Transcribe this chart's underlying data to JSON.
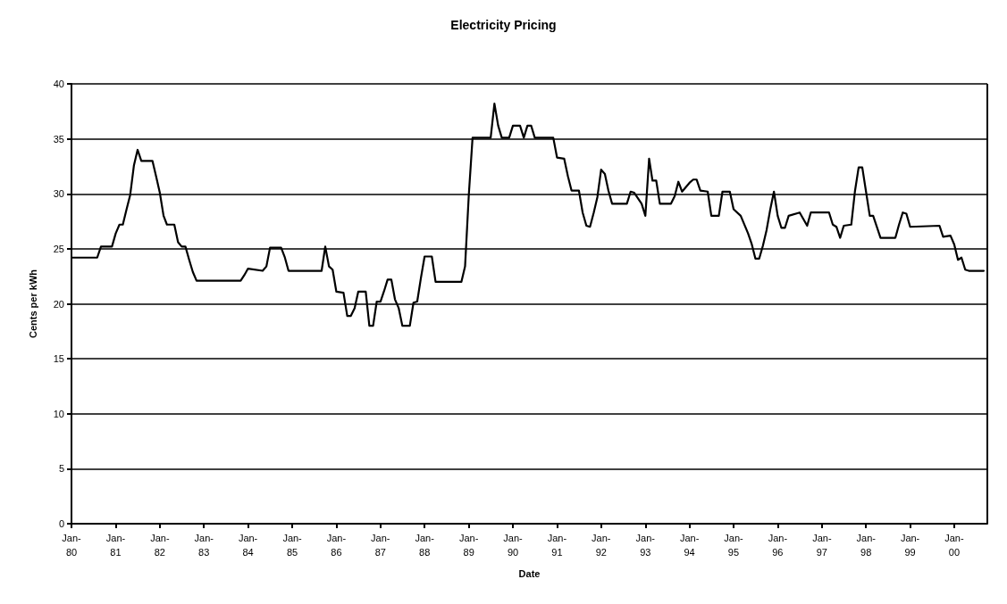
{
  "chart_data": {
    "type": "line",
    "title": "Electricity Pricing",
    "xlabel": "Date",
    "ylabel": "Cents per kWh",
    "xlim": [
      "1980-01",
      "2000-10"
    ],
    "xticks": [
      {
        "value": "1980-01",
        "label": "Jan-80"
      },
      {
        "value": "1981-01",
        "label": "Jan-81"
      },
      {
        "value": "1982-01",
        "label": "Jan-82"
      },
      {
        "value": "1983-01",
        "label": "Jan-83"
      },
      {
        "value": "1984-01",
        "label": "Jan-84"
      },
      {
        "value": "1985-01",
        "label": "Jan-85"
      },
      {
        "value": "1986-01",
        "label": "Jan-86"
      },
      {
        "value": "1987-01",
        "label": "Jan-87"
      },
      {
        "value": "1988-01",
        "label": "Jan-88"
      },
      {
        "value": "1989-01",
        "label": "Jan-89"
      },
      {
        "value": "1990-01",
        "label": "Jan-90"
      },
      {
        "value": "1991-01",
        "label": "Jan-91"
      },
      {
        "value": "1992-01",
        "label": "Jan-92"
      },
      {
        "value": "1993-01",
        "label": "Jan-93"
      },
      {
        "value": "1994-01",
        "label": "Jan-94"
      },
      {
        "value": "1995-01",
        "label": "Jan-95"
      },
      {
        "value": "1996-01",
        "label": "Jan-96"
      },
      {
        "value": "1997-01",
        "label": "Jan-97"
      },
      {
        "value": "1998-01",
        "label": "Jan-98"
      },
      {
        "value": "1999-01",
        "label": "Jan-99"
      },
      {
        "value": "2000-01",
        "label": "Jan-00"
      }
    ],
    "ylim": [
      0,
      40
    ],
    "yticks": [
      0,
      5,
      10,
      15,
      20,
      25,
      30,
      35,
      40
    ],
    "grid": "y",
    "marker": "none",
    "line_style": "solid",
    "series": [
      {
        "color": "#000000",
        "x": [
          "1980-01",
          "1980-08",
          "1980-09",
          "1980-12",
          "1981-01",
          "1981-02",
          "1981-03",
          "1981-04",
          "1981-05",
          "1981-06",
          "1981-07",
          "1981-08",
          "1981-11",
          "1981-12",
          "1982-01",
          "1982-02",
          "1982-03",
          "1982-05",
          "1982-06",
          "1982-07",
          "1982-08",
          "1982-09",
          "1982-10",
          "1982-11",
          "1983-11",
          "1983-12",
          "1984-01",
          "1984-05",
          "1984-06",
          "1984-07",
          "1984-10",
          "1984-11",
          "1984-12",
          "1985-09",
          "1985-10",
          "1985-11",
          "1985-12",
          "1986-01",
          "1986-03",
          "1986-04",
          "1986-05",
          "1986-06",
          "1986-07",
          "1986-09",
          "1986-10",
          "1986-11",
          "1986-12",
          "1987-01",
          "1987-02",
          "1987-03",
          "1987-04",
          "1987-05",
          "1987-06",
          "1987-07",
          "1987-09",
          "1987-10",
          "1987-11",
          "1987-12",
          "1988-01",
          "1988-03",
          "1988-04",
          "1988-11",
          "1988-12",
          "1989-01",
          "1989-02",
          "1989-07",
          "1989-08",
          "1989-09",
          "1989-10",
          "1989-12",
          "1990-01",
          "1990-03",
          "1990-04",
          "1990-05",
          "1990-06",
          "1990-07",
          "1990-12",
          "1991-01",
          "1991-03",
          "1991-04",
          "1991-05",
          "1991-07",
          "1991-08",
          "1991-09",
          "1991-10",
          "1991-11",
          "1991-12",
          "1992-01",
          "1992-02",
          "1992-03",
          "1992-04",
          "1992-08",
          "1992-09",
          "1992-10",
          "1992-12",
          "1993-01",
          "1993-02",
          "1993-03",
          "1993-04",
          "1993-05",
          "1993-08",
          "1993-09",
          "1993-10",
          "1993-11",
          "1994-01",
          "1994-02",
          "1994-03",
          "1994-04",
          "1994-06",
          "1994-07",
          "1994-09",
          "1994-10",
          "1994-12",
          "1995-01",
          "1995-03",
          "1995-05",
          "1995-06",
          "1995-07",
          "1995-08",
          "1995-09",
          "1995-10",
          "1995-11",
          "1995-12",
          "1996-01",
          "1996-02",
          "1996-03",
          "1996-04",
          "1996-07",
          "1996-09",
          "1996-10",
          "1997-03",
          "1997-04",
          "1997-05",
          "1997-06",
          "1997-07",
          "1997-09",
          "1997-10",
          "1997-11",
          "1997-12",
          "1998-01",
          "1998-02",
          "1998-03",
          "1998-05",
          "1998-09",
          "1998-10",
          "1998-11",
          "1998-12",
          "1999-01",
          "1999-09",
          "1999-10",
          "1999-12",
          "2000-01",
          "2000-02",
          "2000-03",
          "2000-04",
          "2000-05",
          "2000-09"
        ],
        "values": [
          24.2,
          24.2,
          25.2,
          25.2,
          26.4,
          27.2,
          27.2,
          28.6,
          29.9,
          32.6,
          34.0,
          33.0,
          33.0,
          31.6,
          30.1,
          28.0,
          27.2,
          27.2,
          25.6,
          25.2,
          25.2,
          24.0,
          22.9,
          22.1,
          22.1,
          22.6,
          23.2,
          23.0,
          23.4,
          25.1,
          25.1,
          24.2,
          23.0,
          23.0,
          25.2,
          23.4,
          23.1,
          21.1,
          21.0,
          18.9,
          18.9,
          19.6,
          21.1,
          21.1,
          18.0,
          18.0,
          20.2,
          20.2,
          21.2,
          22.2,
          22.2,
          20.4,
          19.6,
          18.0,
          18.0,
          20.1,
          20.2,
          22.3,
          24.3,
          24.3,
          22.0,
          22.0,
          23.4,
          29.9,
          35.1,
          35.1,
          38.2,
          36.2,
          35.1,
          35.1,
          36.2,
          36.2,
          35.1,
          36.2,
          36.2,
          35.1,
          35.1,
          33.3,
          33.2,
          31.6,
          30.3,
          30.3,
          28.3,
          27.1,
          27.0,
          28.3,
          29.7,
          32.2,
          31.8,
          30.3,
          29.1,
          29.1,
          30.2,
          30.1,
          29.1,
          28.0,
          33.2,
          31.2,
          31.2,
          29.1,
          29.1,
          29.8,
          31.1,
          30.2,
          31.0,
          31.3,
          31.3,
          30.3,
          30.2,
          28.0,
          28.0,
          30.2,
          30.2,
          28.6,
          28.0,
          26.4,
          25.4,
          24.1,
          24.1,
          25.3,
          26.7,
          28.6,
          30.2,
          28.0,
          26.9,
          26.9,
          28.0,
          28.3,
          27.1,
          28.3,
          28.3,
          27.2,
          27.0,
          26.0,
          27.1,
          27.2,
          30.2,
          32.4,
          32.4,
          30.2,
          28.0,
          28.0,
          26.0,
          26.0,
          27.2,
          28.3,
          28.2,
          27.0,
          27.1,
          26.1,
          26.2,
          25.4,
          24.0,
          24.2,
          23.1,
          23.0,
          23.0
        ]
      }
    ]
  }
}
